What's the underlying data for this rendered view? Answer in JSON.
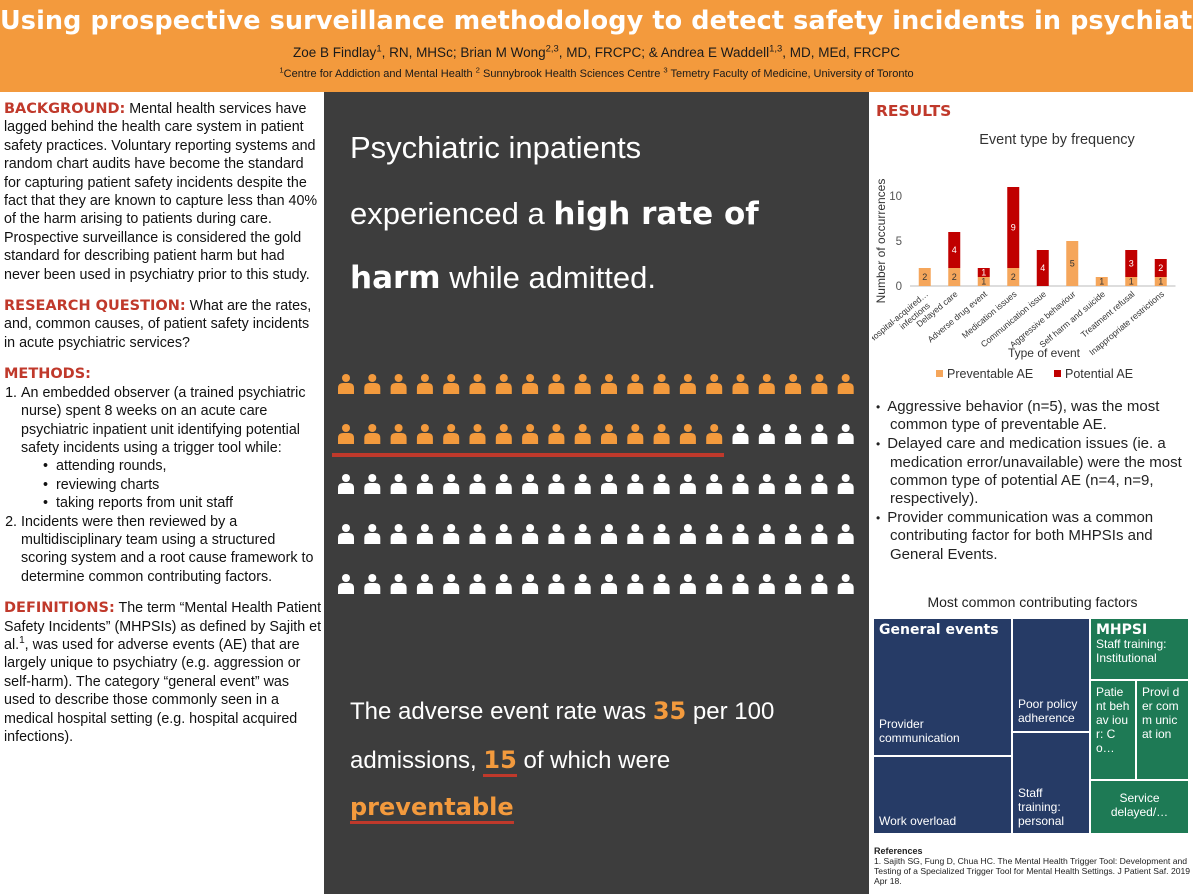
{
  "header": {
    "title": "Using prospective surveillance methodology to detect safety incidents in psychiatry",
    "authors": [
      {
        "name": "Zoe B Findlay",
        "sup": "1",
        "creds": ", RN, MHSc; "
      },
      {
        "name": "Brian M Wong",
        "sup": "2,3",
        "creds": ", MD, FRCPC; & "
      },
      {
        "name": "Andrea E Waddell",
        "sup": "1,3",
        "creds": ", MD, MEd, FRCPC"
      }
    ],
    "affiliations": [
      {
        "sup": "1",
        "name": "Centre for Addiction and Mental Health "
      },
      {
        "sup": "2",
        "name": " Sunnybrook Health Sciences Centre "
      },
      {
        "sup": "3",
        "name": " Temetry Faculty of Medicine, University of Toronto"
      }
    ]
  },
  "left": {
    "background_label": "BACKGROUND:",
    "background_text": " Mental health services have lagged behind the health care system in patient safety practices. Voluntary reporting systems and random chart audits have become the standard for capturing patient safety incidents despite the fact that they are known to capture less than 40% of the harm arising to patients during care. Prospective surveillance is considered the gold standard for describing patient harm but had never been used in psychiatry prior to this study.",
    "question_label": "RESEARCH QUESTION:",
    "question_text": " What are the rates, and, common causes, of patient safety incidents in acute psychiatric services?",
    "methods_label": "METHODS:",
    "method1": "An embedded observer (a trained psychiatric nurse) spent 8 weeks on an acute care psychiatric inpatient unit identifying potential safety incidents using a trigger tool while:",
    "method1_sub": [
      "attending rounds,",
      "reviewing charts",
      "taking reports from unit staff"
    ],
    "method2": "Incidents were then reviewed by a multidisciplinary team using a structured scoring system and a root cause framework to determine common contributing factors.",
    "definitions_label": "DEFINITIONS:",
    "def_a": " The term “Mental Health Patient Safety Incidents” (MHPSIs) as defined by Sajith et al.",
    "def_sup": "1",
    "def_b": ", was used for adverse events (AE) that are largely unique to psychiatry (e.g. aggression or self-harm). The category “general event” was used to describe those commonly seen in a medical hospital setting (e.g. hospital acquired infections)."
  },
  "center": {
    "line1": "Psychiatric inpatients",
    "line2_a": "experienced a ",
    "line2_b": "high rate of",
    "line3_a": "harm",
    "line3_b": " while admitted.",
    "icons": {
      "total": 100,
      "highlighted": 35,
      "per_row": 20,
      "highlight_color": "#f39a3d",
      "other_color": "#ffffff",
      "icon": "person-icon"
    },
    "rate1_a": "The adverse event rate was ",
    "rate1_num": "35",
    "rate1_b": " per 100",
    "rate2_a": "admissions, ",
    "rate2_num": "15",
    "rate2_b": " of which were",
    "rate3": "preventable",
    "accent_color": "#f39a3d",
    "underline_color": "#c0392b"
  },
  "right": {
    "results_label": "RESULTS",
    "bullets": [
      "Aggressive behavior (n=5), was the most common type of preventable AE.",
      "Delayed care and medication issues (ie. a medication error/unavailable) were the most common type of potential AE (n=4, n=9, respectively).",
      "Provider communication was a common contributing factor for both MHPSIs and General Events."
    ],
    "cf_title": "Most common contributing factors",
    "treemap": {
      "general_title": "General events",
      "provider": "Provider communication",
      "poor_policy": "Poor policy adherence",
      "work_overload": "Work overload",
      "staff_personal": "Staff training: personal",
      "mhpsi_title": "MHPSI",
      "staff_institutional": "Staff training: Institutional",
      "patient_behaviour": "Patie nt behav iour: Co…",
      "provider_comm_short": "Provi der comm unicat ion",
      "service_delayed": "Service delayed/…",
      "navy": "#263b66",
      "green": "#1e7a55"
    },
    "refs_title": "References",
    "refs_text": "1. Sajith SG, Fung D, Chua HC. The Mental Health Trigger Tool: Development and Testing of a Specialized Trigger Tool for Mental Health Settings. J Patient Saf. 2019 Apr 18."
  },
  "chart_data": {
    "type": "bar",
    "stacked": true,
    "title": "Event type by frequency",
    "xlabel": "Type of event",
    "ylabel": "Number of occurrences",
    "ylim": [
      0,
      12
    ],
    "yticks": [
      0,
      5,
      10
    ],
    "categories": [
      "Hospital-acquired infections",
      "Delayed care",
      "Adverse drug event",
      "Medication issues",
      "Communication issue",
      "Aggressive behaviour",
      "Self harm and suicide",
      "Treatment refusal",
      "Inappropriate restrictions"
    ],
    "category_labels": [
      "Hospital-acquired… infections",
      "Delayed care",
      "Adverse drug event",
      "Medication issues",
      "Communication issue",
      "Aggressive behaviour",
      "Self harm and suicide",
      "Treatment refusal",
      "Inappropriate restrictions"
    ],
    "series": [
      {
        "name": "Preventable AE",
        "color": "#f5a65b",
        "values": [
          2,
          2,
          1,
          2,
          0,
          5,
          1,
          1,
          1
        ],
        "labels": [
          "2",
          "2",
          "1",
          "2",
          "",
          "5",
          "1",
          "1",
          "1"
        ]
      },
      {
        "name": "Potential AE",
        "color": "#c00000",
        "values": [
          0,
          4,
          1,
          9,
          4,
          0,
          0,
          3,
          2
        ],
        "labels": [
          "",
          "4",
          "1",
          "9",
          "4",
          "",
          "",
          "3",
          "2"
        ]
      }
    ],
    "legend": "bottom",
    "grid": false
  }
}
